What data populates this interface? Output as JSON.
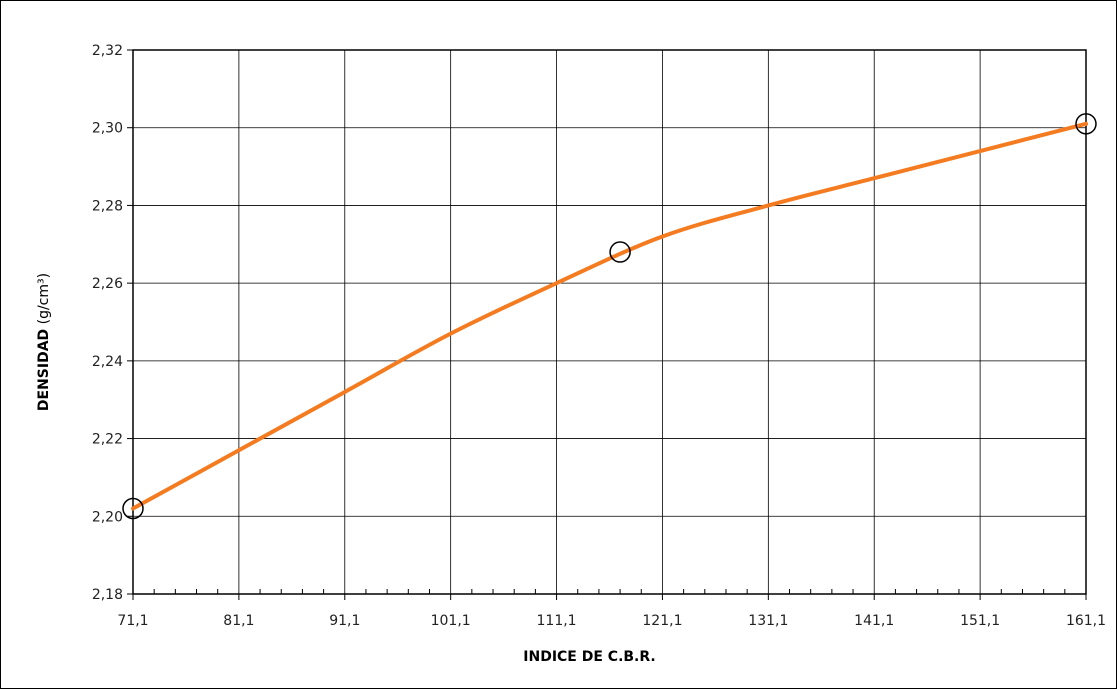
{
  "chart_data": {
    "type": "line",
    "xlabel": "INDICE  DE C.B.R.",
    "ylabel_bold": "DENSIDAD",
    "ylabel_unit": " (g/cm³)",
    "xlim": [
      71.1,
      161.1
    ],
    "ylim": [
      2.18,
      2.32
    ],
    "x_ticks": [
      "71,1",
      "81,1",
      "91,1",
      "101,1",
      "111,1",
      "121,1",
      "131,1",
      "141,1",
      "151,1",
      "161,1"
    ],
    "x_tick_values": [
      71.1,
      81.1,
      91.1,
      101.1,
      111.1,
      121.1,
      131.1,
      141.1,
      151.1,
      161.1
    ],
    "y_ticks": [
      "2,18",
      "2,20",
      "2,22",
      "2,24",
      "2,26",
      "2,28",
      "2,30",
      "2,32"
    ],
    "y_tick_values": [
      2.18,
      2.2,
      2.22,
      2.24,
      2.26,
      2.28,
      2.3,
      2.32
    ],
    "grid": true,
    "series": [
      {
        "color": "#F47B20",
        "x": [
          71.1,
          81.1,
          91.1,
          101.1,
          111.1,
          121.1,
          131.1,
          141.1,
          151.1,
          161.1
        ],
        "y": [
          2.202,
          2.217,
          2.232,
          2.247,
          2.26,
          2.272,
          2.28,
          2.287,
          2.294,
          2.301
        ]
      }
    ],
    "points": [
      {
        "x": 71.1,
        "y": 2.202
      },
      {
        "x": 117.1,
        "y": 2.268
      },
      {
        "x": 161.1,
        "y": 2.301
      }
    ]
  }
}
